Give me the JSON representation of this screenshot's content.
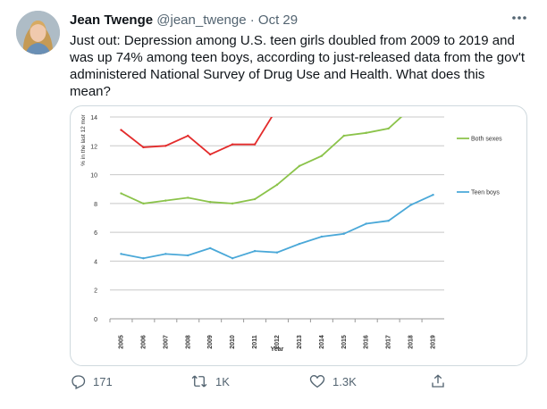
{
  "tweet": {
    "name": "Jean Twenge",
    "handle": "@jean_twenge",
    "separator": "·",
    "date": "Oct 29",
    "more_icon": "more-horizontal-icon",
    "text": "Just out: Depression among U.S. teen girls doubled from 2009 to 2019 and was up 74% among teen boys, according to just-released data from the gov't administered National Survey of Drug Use and Health. What does this mean?"
  },
  "actions": {
    "reply_count": "171",
    "retweet_count": "1K",
    "like_count": "1.3K",
    "icons": [
      "reply-icon",
      "retweet-icon",
      "like-icon",
      "share-icon"
    ]
  },
  "chart_data": {
    "type": "line",
    "xlabel": "Year",
    "ylabel": "% in the last 12 mor",
    "x": [
      "2005",
      "2006",
      "2007",
      "2008",
      "2009",
      "2010",
      "2011",
      "2012",
      "2013",
      "2014",
      "2015",
      "2016",
      "2017",
      "2018",
      "2019"
    ],
    "ylim": [
      0,
      14
    ],
    "yticks": [
      0,
      2,
      4,
      6,
      8,
      10,
      12,
      14
    ],
    "grid": true,
    "series": [
      {
        "name": "",
        "color": "#e32b2b",
        "values": [
          13.1,
          11.9,
          12.0,
          12.7,
          11.4,
          12.1,
          12.1,
          14.6,
          null,
          null,
          null,
          null,
          null,
          null,
          null
        ]
      },
      {
        "name": "Both sexes",
        "color": "#8bc34a",
        "values": [
          8.7,
          8.0,
          8.2,
          8.4,
          8.1,
          8.0,
          8.3,
          9.3,
          10.6,
          11.3,
          12.7,
          12.9,
          13.2,
          14.6,
          null
        ]
      },
      {
        "name": "Teen boys",
        "color": "#4aa8d8",
        "values": [
          4.5,
          4.2,
          4.5,
          4.4,
          4.9,
          4.2,
          4.7,
          4.6,
          5.2,
          5.7,
          5.9,
          6.6,
          6.8,
          7.9,
          8.6
        ]
      }
    ]
  }
}
